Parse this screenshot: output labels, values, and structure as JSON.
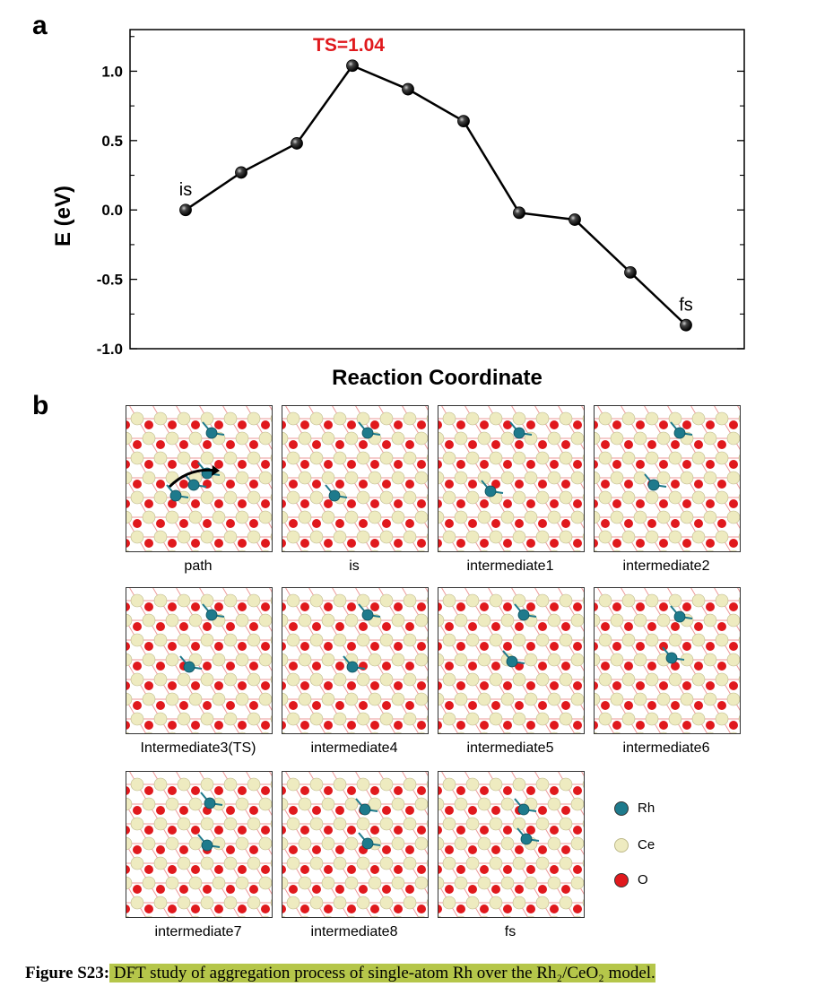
{
  "panel_a_label": "a",
  "panel_b_label": "b",
  "chart_data": {
    "type": "line",
    "title": "",
    "xlabel": "Reaction Coordinate",
    "ylabel": "E (eV)",
    "x": [
      1,
      2,
      3,
      4,
      5,
      6,
      7,
      8,
      9,
      10
    ],
    "values": [
      0.0,
      0.27,
      0.48,
      1.04,
      0.87,
      0.64,
      -0.02,
      -0.07,
      -0.45,
      -0.83
    ],
    "ylim": [
      -1.0,
      1.3
    ],
    "yticks": [
      "-1.0",
      "-0.5",
      "0.0",
      "0.5",
      "1.0"
    ],
    "annotations": [
      {
        "text": "is",
        "point_index": 0
      },
      {
        "text": "TS=1.04",
        "point_index": 3,
        "color": "#e0191d"
      },
      {
        "text": "fs",
        "point_index": 9
      }
    ],
    "grid": false,
    "marker_color": "#111111",
    "line_color": "#000000"
  },
  "tiles": [
    {
      "label": "path"
    },
    {
      "label": "is"
    },
    {
      "label": "intermediate1"
    },
    {
      "label": "intermediate2"
    },
    {
      "label": "Intermediate3(TS)"
    },
    {
      "label": "intermediate4"
    },
    {
      "label": "intermediate5"
    },
    {
      "label": "intermediate6"
    },
    {
      "label": "intermediate7"
    },
    {
      "label": "intermediate8"
    },
    {
      "label": "fs"
    }
  ],
  "legend": [
    {
      "label": "Rh",
      "color": "#1e7a8c"
    },
    {
      "label": "Ce",
      "color": "#eeebc0"
    },
    {
      "label": "O",
      "color": "#e0191d"
    }
  ],
  "caption": {
    "prefix": "Figure S23:",
    "text": " DFT study of aggregation process of single-atom Rh over the Rh₂/CeO₂ model."
  }
}
